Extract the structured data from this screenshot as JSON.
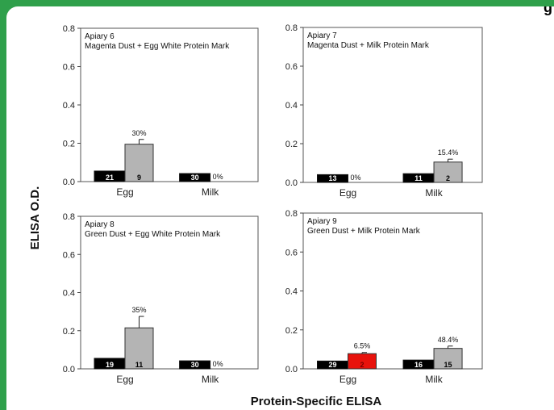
{
  "header": {
    "title_fragment": "g"
  },
  "figure": {
    "ylabel": "ELISA O.D.",
    "xlabel": "Protein-Specific ELISA"
  },
  "colors": {
    "dark": "#000000",
    "light": "#b4b4b4",
    "highlight": "#e8120c",
    "frame": "#2fa04b"
  },
  "chart_data": [
    {
      "type": "bar",
      "panel": "Apiary 6",
      "title": "Apiary 6",
      "subtitle": "Magenta Dust + Egg White Protein Mark",
      "categories": [
        "Egg",
        "Milk"
      ],
      "ylim": [
        0,
        0.8
      ],
      "yticks": [
        "0.0",
        "0.2",
        "0.4",
        "0.6",
        "0.8"
      ],
      "series": [
        {
          "values": [
            0.055,
            0.042
          ],
          "n_labels": [
            "21",
            "30"
          ],
          "color": "#000000"
        },
        {
          "values": [
            0.195,
            0.0
          ],
          "n_labels": [
            "9",
            ""
          ],
          "pct_labels": [
            "30%",
            "0%"
          ],
          "errors": [
            0.025,
            0
          ],
          "color": "#b4b4b4"
        }
      ]
    },
    {
      "type": "bar",
      "panel": "Apiary 7",
      "title": "Apiary 7",
      "subtitle": "Magenta Dust + Milk Protein Mark",
      "categories": [
        "Egg",
        "Milk"
      ],
      "ylim": [
        0,
        0.8
      ],
      "yticks": [
        "0.0",
        "0.2",
        "0.4",
        "0.6",
        "0.8"
      ],
      "series": [
        {
          "values": [
            0.04,
            0.045
          ],
          "n_labels": [
            "13",
            "11"
          ],
          "color": "#000000"
        },
        {
          "values": [
            0.0,
            0.105
          ],
          "n_labels": [
            "",
            "2"
          ],
          "pct_labels": [
            "0%",
            "15.4%"
          ],
          "errors": [
            0,
            0.015
          ],
          "color": "#b4b4b4"
        }
      ]
    },
    {
      "type": "bar",
      "panel": "Apiary 8",
      "title": "Apiary 8",
      "subtitle": "Green Dust + Egg White Protein Mark",
      "categories": [
        "Egg",
        "Milk"
      ],
      "ylim": [
        0,
        0.8
      ],
      "yticks": [
        "0.0",
        "0.2",
        "0.4",
        "0.6",
        "0.8"
      ],
      "series": [
        {
          "values": [
            0.055,
            0.042
          ],
          "n_labels": [
            "19",
            "30"
          ],
          "color": "#000000"
        },
        {
          "values": [
            0.215,
            0.0
          ],
          "n_labels": [
            "11",
            ""
          ],
          "pct_labels": [
            "35%",
            "0%"
          ],
          "errors": [
            0.06,
            0
          ],
          "color": "#b4b4b4"
        }
      ]
    },
    {
      "type": "bar",
      "panel": "Apiary 9",
      "title": "Apiary 9",
      "subtitle": "Green Dust + Milk  Protein Mark",
      "categories": [
        "Egg",
        "Milk"
      ],
      "ylim": [
        0,
        0.8
      ],
      "yticks": [
        "0.0",
        "0.2",
        "0.4",
        "0.6",
        "0.8"
      ],
      "series": [
        {
          "values": [
            0.04,
            0.045
          ],
          "n_labels": [
            "29",
            "16"
          ],
          "color": "#000000"
        },
        {
          "values": [
            0.078,
            0.105
          ],
          "n_labels": [
            "2",
            "15"
          ],
          "pct_labels": [
            "6.5%",
            "48.4%"
          ],
          "errors": [
            0.006,
            0.012
          ],
          "color": "#b4b4b4",
          "highlight_index": 0
        }
      ]
    }
  ]
}
